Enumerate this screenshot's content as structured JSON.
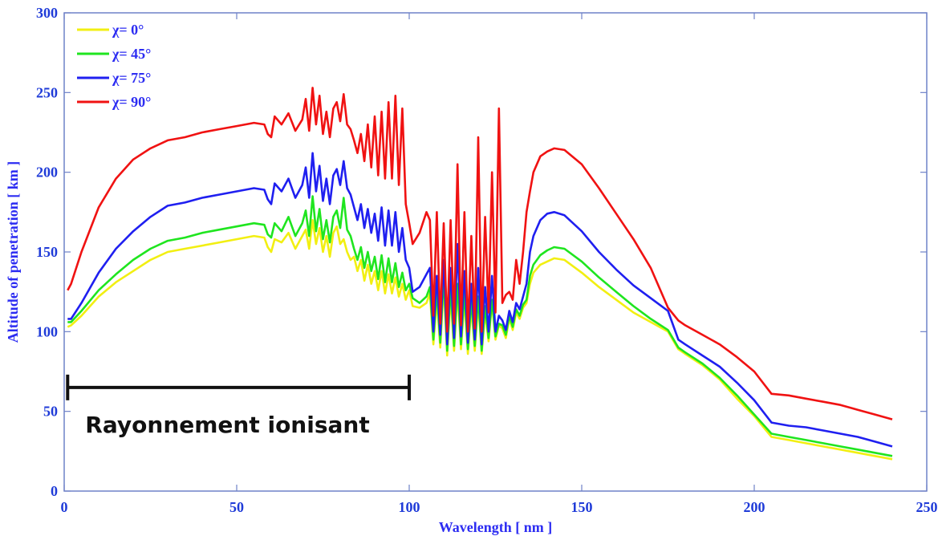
{
  "chart_data": {
    "type": "line",
    "title": "",
    "xlabel": "Wavelength [ nm ]",
    "ylabel": "Altitude of penetration [ km ]",
    "xlim": [
      0,
      250
    ],
    "ylim": [
      0,
      300
    ],
    "xticks": [
      0,
      50,
      100,
      150,
      200,
      250
    ],
    "yticks": [
      0,
      50,
      100,
      150,
      200,
      250,
      300
    ],
    "grid": false,
    "legend": "top-left",
    "annotation": {
      "text": "Rayonnement ionisant",
      "bracket_x": [
        1,
        100
      ],
      "bracket_y": 65
    },
    "series": [
      {
        "name": "χ= 0°",
        "color": "#f2ef12",
        "x": [
          1,
          2,
          5,
          10,
          15,
          20,
          25,
          30,
          35,
          40,
          45,
          50,
          55,
          58,
          59,
          60,
          61,
          63,
          65,
          67,
          69,
          70,
          71,
          72,
          73,
          74,
          75,
          76,
          77,
          78,
          79,
          80,
          81,
          82,
          83,
          84,
          85,
          86,
          87,
          88,
          89,
          90,
          91,
          92,
          93,
          94,
          95,
          96,
          97,
          98,
          99,
          100,
          101,
          103,
          105,
          106,
          107,
          108,
          109,
          110,
          111,
          112,
          113,
          114,
          115,
          116,
          117,
          118,
          119,
          120,
          121,
          122,
          123,
          124,
          125,
          126,
          127,
          128,
          129,
          130,
          131,
          132,
          133,
          134,
          135,
          136,
          138,
          140,
          142,
          145,
          150,
          155,
          160,
          165,
          170,
          175,
          178,
          180,
          185,
          190,
          195,
          200,
          205,
          210,
          215,
          220,
          225,
          230,
          235,
          240
        ],
        "y": [
          103,
          104,
          110,
          122,
          131,
          138,
          145,
          150,
          152,
          154,
          156,
          158,
          160,
          159,
          153,
          150,
          158,
          156,
          162,
          152,
          160,
          164,
          152,
          170,
          155,
          165,
          150,
          160,
          147,
          162,
          166,
          155,
          158,
          150,
          145,
          147,
          138,
          145,
          132,
          142,
          130,
          138,
          126,
          138,
          124,
          136,
          124,
          134,
          122,
          130,
          120,
          126,
          116,
          115,
          118,
          124,
          92,
          120,
          90,
          130,
          85,
          122,
          88,
          125,
          89,
          120,
          86,
          115,
          88,
          118,
          86,
          112,
          94,
          118,
          95,
          104,
          102,
          96,
          108,
          101,
          112,
          108,
          115,
          118,
          130,
          137,
          142,
          144,
          146,
          145,
          137,
          128,
          120,
          112,
          106,
          100,
          89,
          86,
          79,
          70,
          58,
          47,
          34,
          32,
          30,
          28,
          26,
          24,
          22,
          20
        ]
      },
      {
        "name": "χ= 45°",
        "color": "#1fe51f",
        "x": [
          1,
          2,
          5,
          10,
          15,
          20,
          25,
          30,
          35,
          40,
          45,
          50,
          55,
          58,
          59,
          60,
          61,
          63,
          65,
          67,
          69,
          70,
          71,
          72,
          73,
          74,
          75,
          76,
          77,
          78,
          79,
          80,
          81,
          82,
          83,
          84,
          85,
          86,
          87,
          88,
          89,
          90,
          91,
          92,
          93,
          94,
          95,
          96,
          97,
          98,
          99,
          100,
          101,
          103,
          105,
          106,
          107,
          108,
          109,
          110,
          111,
          112,
          113,
          114,
          115,
          116,
          117,
          118,
          119,
          120,
          121,
          122,
          123,
          124,
          125,
          126,
          127,
          128,
          129,
          130,
          131,
          132,
          133,
          134,
          135,
          136,
          138,
          140,
          142,
          145,
          150,
          155,
          160,
          165,
          170,
          175,
          178,
          180,
          185,
          190,
          195,
          200,
          205,
          210,
          215,
          220,
          225,
          230,
          235,
          240
        ],
        "y": [
          106,
          106,
          113,
          126,
          136,
          145,
          152,
          157,
          159,
          162,
          164,
          166,
          168,
          167,
          161,
          159,
          168,
          163,
          172,
          160,
          168,
          176,
          160,
          185,
          163,
          177,
          158,
          170,
          156,
          172,
          176,
          165,
          184,
          164,
          160,
          152,
          145,
          153,
          140,
          150,
          138,
          147,
          133,
          148,
          131,
          146,
          131,
          143,
          128,
          137,
          126,
          130,
          121,
          118,
          122,
          128,
          95,
          126,
          93,
          135,
          88,
          128,
          91,
          130,
          92,
          125,
          89,
          120,
          91,
          122,
          88,
          116,
          96,
          120,
          97,
          105,
          104,
          98,
          110,
          103,
          114,
          110,
          117,
          120,
          135,
          142,
          148,
          151,
          153,
          152,
          144,
          134,
          125,
          116,
          108,
          101,
          90,
          87,
          80,
          71,
          60,
          48,
          36,
          34,
          32,
          30,
          28,
          26,
          24,
          22
        ]
      },
      {
        "name": "χ= 75°",
        "color": "#1f1ff0",
        "x": [
          1,
          2,
          5,
          10,
          15,
          20,
          25,
          30,
          35,
          40,
          45,
          50,
          55,
          58,
          59,
          60,
          61,
          63,
          65,
          67,
          69,
          70,
          71,
          72,
          73,
          74,
          75,
          76,
          77,
          78,
          79,
          80,
          81,
          82,
          83,
          84,
          85,
          86,
          87,
          88,
          89,
          90,
          91,
          92,
          93,
          94,
          95,
          96,
          97,
          98,
          99,
          100,
          101,
          103,
          105,
          106,
          107,
          108,
          109,
          110,
          111,
          112,
          113,
          114,
          115,
          116,
          117,
          118,
          119,
          120,
          121,
          122,
          123,
          124,
          125,
          126,
          127,
          128,
          129,
          130,
          131,
          132,
          133,
          134,
          135,
          136,
          138,
          140,
          142,
          145,
          150,
          155,
          160,
          165,
          170,
          175,
          178,
          180,
          185,
          190,
          195,
          200,
          205,
          210,
          215,
          220,
          225,
          230,
          235,
          240
        ],
        "y": [
          108,
          108,
          118,
          137,
          152,
          163,
          172,
          179,
          181,
          184,
          186,
          188,
          190,
          189,
          183,
          180,
          193,
          188,
          196,
          184,
          192,
          203,
          184,
          212,
          188,
          204,
          182,
          196,
          180,
          198,
          202,
          192,
          207,
          190,
          186,
          178,
          170,
          180,
          165,
          177,
          162,
          174,
          157,
          178,
          154,
          176,
          154,
          175,
          150,
          165,
          145,
          140,
          125,
          128,
          136,
          140,
          100,
          135,
          98,
          145,
          92,
          140,
          96,
          155,
          97,
          138,
          93,
          130,
          95,
          140,
          92,
          128,
          100,
          135,
          100,
          110,
          107,
          101,
          113,
          106,
          118,
          114,
          122,
          130,
          150,
          160,
          170,
          174,
          175,
          173,
          163,
          150,
          139,
          129,
          121,
          113,
          95,
          92,
          85,
          78,
          68,
          57,
          43,
          41,
          40,
          38,
          36,
          34,
          31,
          28
        ]
      },
      {
        "name": "χ= 90°",
        "color": "#f01212",
        "x": [
          1,
          2,
          5,
          10,
          15,
          20,
          25,
          30,
          35,
          40,
          45,
          50,
          55,
          58,
          59,
          60,
          61,
          63,
          65,
          67,
          69,
          70,
          71,
          72,
          73,
          74,
          75,
          76,
          77,
          78,
          79,
          80,
          81,
          82,
          83,
          84,
          85,
          86,
          87,
          88,
          89,
          90,
          91,
          92,
          93,
          94,
          95,
          96,
          97,
          98,
          99,
          100,
          101,
          103,
          105,
          106,
          107,
          108,
          109,
          110,
          111,
          112,
          113,
          114,
          115,
          116,
          117,
          118,
          119,
          120,
          121,
          122,
          123,
          124,
          125,
          126,
          127,
          128,
          129,
          130,
          131,
          132,
          133,
          134,
          135,
          136,
          138,
          140,
          142,
          145,
          150,
          155,
          160,
          165,
          170,
          175,
          178,
          180,
          185,
          190,
          195,
          200,
          205,
          210,
          215,
          220,
          225,
          230,
          235,
          240
        ],
        "y": [
          126,
          130,
          150,
          178,
          196,
          208,
          215,
          220,
          222,
          225,
          227,
          229,
          231,
          230,
          224,
          222,
          235,
          230,
          237,
          226,
          233,
          246,
          226,
          253,
          230,
          248,
          224,
          238,
          222,
          240,
          244,
          232,
          249,
          230,
          227,
          220,
          212,
          224,
          207,
          230,
          203,
          235,
          198,
          238,
          196,
          244,
          196,
          248,
          192,
          240,
          180,
          168,
          155,
          162,
          175,
          170,
          110,
          175,
          105,
          168,
          100,
          170,
          105,
          205,
          104,
          175,
          100,
          160,
          102,
          222,
          100,
          172,
          112,
          200,
          112,
          240,
          118,
          123,
          125,
          120,
          145,
          130,
          150,
          175,
          188,
          200,
          210,
          213,
          215,
          214,
          205,
          190,
          174,
          158,
          140,
          115,
          107,
          104,
          98,
          92,
          84,
          75,
          61,
          60,
          58,
          56,
          54,
          51,
          48,
          45
        ]
      }
    ]
  }
}
